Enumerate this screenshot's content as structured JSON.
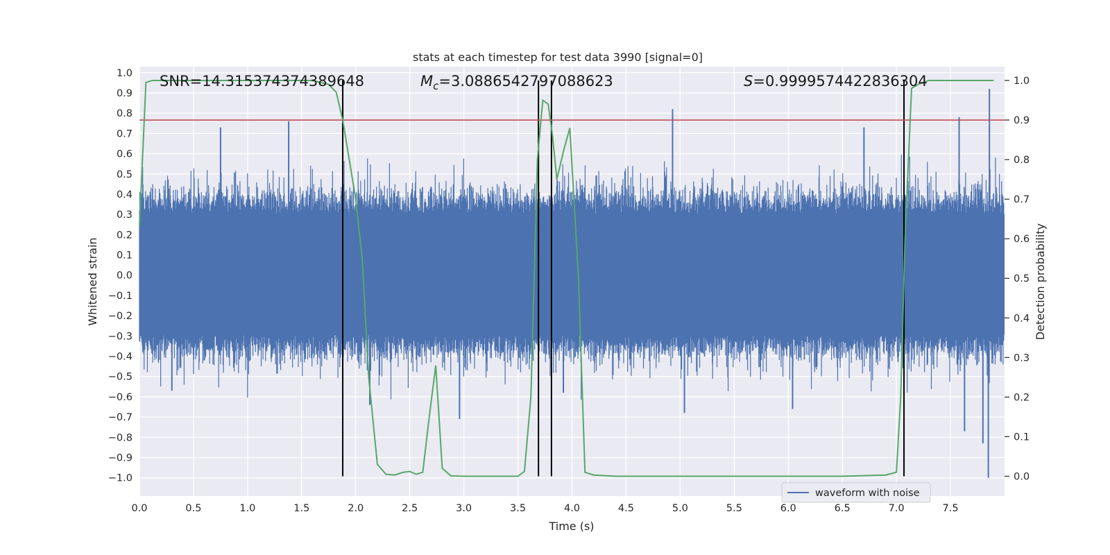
{
  "chart_data": {
    "type": "line",
    "title": "stats at each timestep for test data 3990 [signal=0]",
    "xlabel": "Time (s)",
    "ylabel_left": "Whitened strain",
    "ylabel_right": "Detection probability",
    "xlim": [
      0.0,
      8.0
    ],
    "ylim_left": [
      -1.09,
      1.03
    ],
    "ylim_right": [
      -0.05,
      1.035
    ],
    "x_ticks": [
      0.0,
      0.5,
      1.0,
      1.5,
      2.0,
      2.5,
      3.0,
      3.5,
      4.0,
      4.5,
      5.0,
      5.5,
      6.0,
      6.5,
      7.0,
      7.5
    ],
    "x_tick_labels": [
      "0.0",
      "0.5",
      "1.0",
      "1.5",
      "2.0",
      "2.5",
      "3.0",
      "3.5",
      "4.0",
      "4.5",
      "5.0",
      "5.5",
      "6.0",
      "6.5",
      "7.0",
      "7.5"
    ],
    "y_left_ticks": [
      1.0,
      0.9,
      0.8,
      0.7,
      0.6,
      0.5,
      0.4,
      0.3,
      0.2,
      0.1,
      0.0,
      -0.1,
      -0.2,
      -0.3,
      -0.4,
      -0.5,
      -0.6,
      -0.7,
      -0.8,
      -0.9,
      -1.0
    ],
    "y_left_tick_labels": [
      "1.0",
      "0.9",
      "0.8",
      "0.7",
      "0.6",
      "0.5",
      "0.4",
      "0.3",
      "0.2",
      "0.1",
      "0.0",
      "−0.1",
      "−0.2",
      "−0.3",
      "−0.4",
      "−0.5",
      "−0.6",
      "−0.7",
      "−0.8",
      "−0.9",
      "−1.0"
    ],
    "y_right_ticks": [
      1.0,
      0.9,
      0.8,
      0.7,
      0.6,
      0.5,
      0.4,
      0.3,
      0.2,
      0.1,
      0.0
    ],
    "y_right_tick_labels": [
      "1.0",
      "0.9",
      "0.8",
      "0.7",
      "0.6",
      "0.5",
      "0.4",
      "0.3",
      "0.2",
      "0.1",
      "0.0"
    ],
    "grid": true,
    "annotations": {
      "snr": "SNR=14.315374374389648",
      "mc_symbol": "M",
      "mc_sub": "c",
      "mc_value": "=3.0886542797088623",
      "s_symbol": "S",
      "s_value": "=0.9999574422836304"
    },
    "threshold": {
      "value_right_axis": 0.9,
      "color": "#c44e52"
    },
    "vertical_markers_s": [
      1.88,
      3.69,
      3.81,
      7.07
    ],
    "waveform": {
      "name": "waveform with noise",
      "color": "#4c72b0",
      "envelope_high_p90": 0.43,
      "envelope_low_p10": -0.42,
      "spikes": [
        {
          "t": 0.75,
          "v": 0.73
        },
        {
          "t": 1.38,
          "v": 0.76
        },
        {
          "t": 4.93,
          "v": 0.82
        },
        {
          "t": 6.7,
          "v": 0.73
        },
        {
          "t": 7.58,
          "v": 0.78
        },
        {
          "t": 7.86,
          "v": 0.92
        },
        {
          "t": 7.85,
          "v": -1.0
        },
        {
          "t": 2.96,
          "v": -0.71
        },
        {
          "t": 5.04,
          "v": -0.68
        },
        {
          "t": 6.04,
          "v": -0.66
        },
        {
          "t": 7.8,
          "v": -0.83
        },
        {
          "t": 7.63,
          "v": -0.77
        },
        {
          "t": 2.13,
          "v": -0.64
        },
        {
          "t": 3.92,
          "v": -0.58
        },
        {
          "t": 0.3,
          "v": -0.57
        }
      ]
    },
    "detection_probability": {
      "name": "detection probability",
      "color": "#55a868",
      "x": [
        0.0,
        0.06,
        0.12,
        0.2,
        0.4,
        0.8,
        1.2,
        1.6,
        1.75,
        1.82,
        1.88,
        1.94,
        2.0,
        2.06,
        2.12,
        2.2,
        2.28,
        2.36,
        2.44,
        2.5,
        2.56,
        2.62,
        2.68,
        2.74,
        2.8,
        2.88,
        3.0,
        3.2,
        3.4,
        3.5,
        3.56,
        3.62,
        3.68,
        3.73,
        3.78,
        3.82,
        3.86,
        3.92,
        3.98,
        4.06,
        4.12,
        4.2,
        4.4,
        5.0,
        6.0,
        6.5,
        6.9,
        7.0,
        7.04,
        7.08,
        7.14,
        7.2,
        7.3,
        7.5,
        7.9
      ],
      "y": [
        0.63,
        0.995,
        1.0,
        1.0,
        1.0,
        1.0,
        1.0,
        1.0,
        0.99,
        0.97,
        0.9,
        0.8,
        0.7,
        0.55,
        0.25,
        0.03,
        0.005,
        0.003,
        0.01,
        0.012,
        0.005,
        0.01,
        0.15,
        0.28,
        0.02,
        0.001,
        0.0,
        0.0,
        0.0,
        0.0,
        0.012,
        0.2,
        0.8,
        0.95,
        0.94,
        0.86,
        0.75,
        0.82,
        0.88,
        0.5,
        0.01,
        0.003,
        0.0,
        0.0,
        0.0,
        0.0,
        0.003,
        0.01,
        0.2,
        0.6,
        0.98,
        0.99,
        1.0,
        1.0,
        1.0
      ]
    },
    "legend": {
      "entries": [
        "waveform with noise"
      ],
      "placement": "lower-right"
    }
  }
}
